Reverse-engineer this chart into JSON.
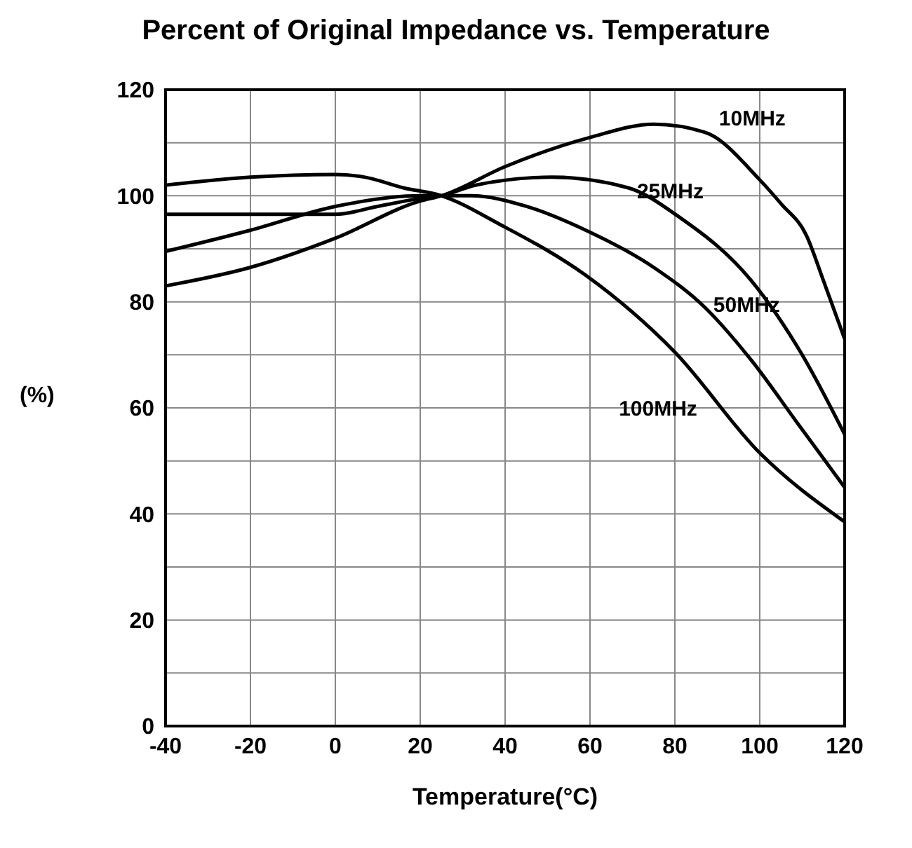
{
  "chart_data": {
    "type": "line",
    "title": "Percent of Original Impedance vs. Temperature",
    "xlabel": "Temperature(°C)",
    "ylabel": "(%)",
    "xlim": [
      -40,
      120
    ],
    "xticks": [
      -40,
      -20,
      0,
      20,
      40,
      60,
      80,
      100,
      120
    ],
    "ylim": [
      0,
      120
    ],
    "yticks": [
      0,
      {
        "value": 10,
        "label": null
      },
      20,
      {
        "value": 30,
        "label": null
      },
      40,
      {
        "value": 50,
        "label": null
      },
      60,
      {
        "value": 70,
        "label": null
      },
      80,
      {
        "value": 90,
        "label": null
      },
      100,
      {
        "value": 110,
        "label": null
      },
      120
    ],
    "grid": true,
    "marker": "none",
    "line_style": "solid",
    "series": [
      {
        "name": "10MHz",
        "color": "#000000",
        "x": [
          -40,
          -20,
          0,
          20,
          25,
          40,
          60,
          75,
          87,
          100,
          105,
          111,
          115,
          120
        ],
        "values": [
          83,
          86.5,
          92,
          99,
          100,
          105.5,
          111,
          113.5,
          112,
          103,
          98.5,
          92.5,
          84,
          73
        ]
      },
      {
        "name": "25MHz",
        "color": "#000000",
        "x": [
          -40,
          0,
          10,
          20,
          25,
          33,
          51,
          69,
          81,
          98,
          110,
          120
        ],
        "values": [
          96.5,
          96.5,
          98,
          99.5,
          100,
          102,
          103.5,
          101.5,
          96,
          84,
          70,
          55
        ]
      },
      {
        "name": "50MHz",
        "color": "#000000",
        "x": [
          -40,
          -20,
          0,
          20,
          32,
          45,
          59,
          75,
          87,
          98,
          109,
          120
        ],
        "values": [
          89.5,
          93.5,
          98,
          100,
          100,
          98,
          93.5,
          86.5,
          79,
          69,
          57,
          45
        ]
      },
      {
        "name": "100MHz",
        "color": "#000000",
        "x": [
          -40,
          -20,
          0,
          7,
          16,
          25,
          39,
          59,
          80,
          100,
          120
        ],
        "values": [
          102,
          103.5,
          104,
          103.5,
          101.5,
          100,
          94.5,
          85,
          70.5,
          51.5,
          38.5
        ]
      }
    ]
  }
}
